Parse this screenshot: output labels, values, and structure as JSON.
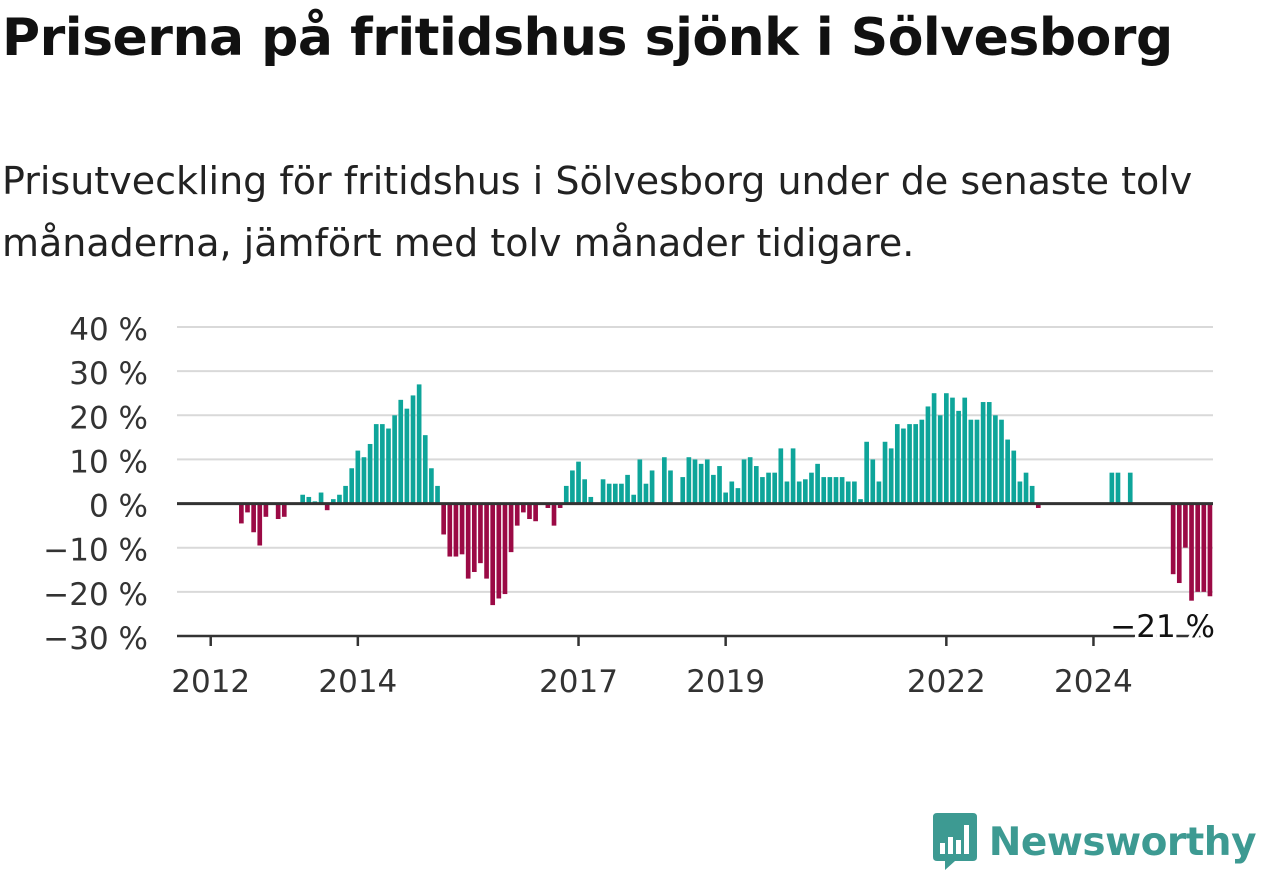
{
  "title": "Priserna på fritidshus sjönk i Sölvesborg",
  "subtitle": "Prisutveckling för fritidshus i Sölvesborg under de senaste tolv månaderna, jämfört med tolv månader tidigare.",
  "brand": "Newsworthy",
  "colors": {
    "positive": "#0ea59a",
    "negative": "#9b0a45",
    "brand": "#3d9a92",
    "grid": "#d9d9d9",
    "zero": "#333333"
  },
  "chart_data": {
    "type": "bar",
    "ylim": [
      -30,
      40
    ],
    "yticks": [
      40,
      30,
      20,
      10,
      0,
      -10,
      -20,
      -30
    ],
    "ytick_labels": [
      "40 %",
      "30 %",
      "20 %",
      "10 %",
      "0 %",
      "−10 %",
      "−20 %",
      "−30 %"
    ],
    "xticks": [
      {
        "year": 2012,
        "label": "2012"
      },
      {
        "year": 2014,
        "label": "2014"
      },
      {
        "year": 2017,
        "label": "2017"
      },
      {
        "year": 2019,
        "label": "2019"
      },
      {
        "year": 2022,
        "label": "2022"
      },
      {
        "year": 2024,
        "label": "2024"
      }
    ],
    "x_start": "2011-08",
    "grid": true,
    "end_annotation": "−21 %",
    "values": [
      null,
      null,
      null,
      null,
      null,
      null,
      null,
      null,
      null,
      null,
      -4.5,
      -2,
      -6.5,
      -9.5,
      -3,
      null,
      -3.5,
      -3,
      null,
      null,
      2,
      1.5,
      0.5,
      2.5,
      -1.5,
      1,
      2,
      4,
      8,
      12,
      10.5,
      13.5,
      18,
      18,
      17,
      20,
      23.5,
      21.5,
      24.5,
      27,
      15.5,
      8,
      4,
      -7,
      -12,
      -12,
      -11.5,
      -17,
      -15.5,
      -13.5,
      -17,
      -23,
      -21.5,
      -20.5,
      -11,
      -5,
      -2,
      -3.5,
      -4,
      null,
      -1,
      -5,
      -1,
      4,
      7.5,
      9.5,
      5.5,
      1.5,
      null,
      5.5,
      4.5,
      4.5,
      4.5,
      6.5,
      2,
      10,
      4.5,
      7.5,
      null,
      10.5,
      7.5,
      null,
      6,
      10.5,
      10,
      9,
      10,
      6.5,
      8.5,
      2.5,
      5,
      3.5,
      10,
      10.5,
      8.5,
      6,
      7,
      7,
      12.5,
      5,
      12.5,
      5,
      5.5,
      7,
      9,
      6,
      6,
      6,
      6,
      5,
      5,
      1,
      14,
      10,
      5,
      14,
      12.5,
      18,
      17,
      18,
      18,
      19,
      22,
      25,
      20,
      25,
      24,
      21,
      24,
      19,
      19,
      23,
      23,
      20,
      19,
      14.5,
      12,
      5,
      7,
      4,
      -1,
      null,
      null,
      null,
      null,
      null,
      null,
      null,
      null,
      null,
      null,
      null,
      7,
      7,
      null,
      7,
      null,
      null,
      null,
      null,
      null,
      null,
      -16,
      -18,
      -10,
      -22,
      -20,
      -20,
      -21
    ]
  }
}
